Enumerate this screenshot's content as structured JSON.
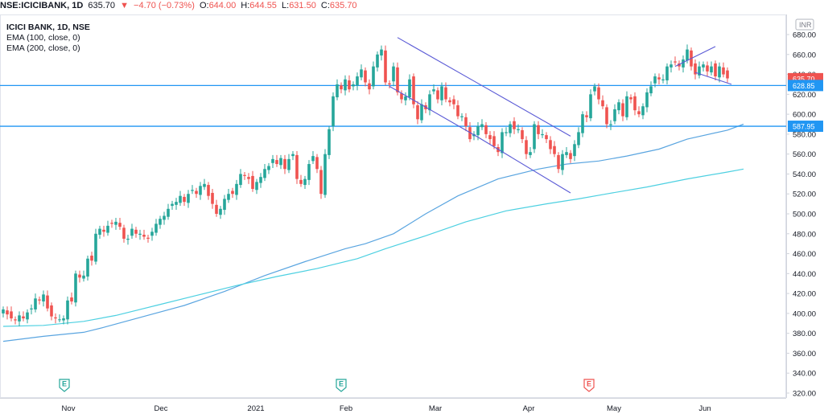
{
  "header": {
    "symbol": "NSE:ICICIBANK, 1D",
    "last": "635.70",
    "change": "−4.70 (−0.73%)",
    "open_label": "O:",
    "open": "644.00",
    "high_label": "H:",
    "high": "644.55",
    "low_label": "L:",
    "low": "631.50",
    "close_label": "C:",
    "close": "635.70"
  },
  "legend": {
    "title": "ICICI BANK, 1D, NSE",
    "ema100": "EMA (100, close, 0)",
    "ema200": "EMA (200, close, 0)"
  },
  "currency": "INR",
  "colors": {
    "up": "#26a69a",
    "down": "#ef5350",
    "ema100": "#5aa5e0",
    "ema200": "#4dd0e1",
    "hline": "#2196f3",
    "channel": "#5b5bd6",
    "earnings_past": "#26a69a",
    "earnings_next": "#ef5350"
  },
  "earnings_markers": [
    {
      "icon": "earnings-icon",
      "text": "E",
      "date": "Nov 1",
      "status": "reported"
    },
    {
      "icon": "earnings-icon",
      "text": "E",
      "date": "Feb 1",
      "status": "reported"
    },
    {
      "icon": "earnings-icon",
      "text": "E",
      "date": "Apr 24",
      "status": "upcoming"
    }
  ],
  "chart_data": {
    "type": "candlestick",
    "ylim": [
      320,
      690
    ],
    "y_ticks": [
      320,
      340,
      360,
      380,
      400,
      420,
      440,
      460,
      480,
      500,
      520,
      540,
      560,
      580,
      600,
      620,
      640,
      660,
      680
    ],
    "x_ticks": [
      "Nov",
      "Dec",
      "2021",
      "Feb",
      "Mar",
      "Apr",
      "May",
      "Jun"
    ],
    "price_labels": [
      {
        "name": "last",
        "value": 635.7,
        "text": "635.70",
        "color": "#ef5350"
      },
      {
        "name": "resistance",
        "value": 628.85,
        "text": "628.85",
        "color": "#2196f3"
      },
      {
        "name": "support",
        "value": 587.95,
        "text": "587.95",
        "color": "#2196f3"
      }
    ],
    "horizontal_lines": [
      628.85,
      587.95
    ],
    "closes": [
      404,
      399,
      395,
      393,
      398,
      395,
      401,
      405,
      415,
      413,
      419,
      405,
      397,
      395,
      394,
      395,
      413,
      412,
      440,
      436,
      438,
      455,
      453,
      480,
      485,
      482,
      488,
      490,
      492,
      487,
      475,
      475,
      485,
      480,
      480,
      477,
      475,
      482,
      490,
      495,
      498,
      505,
      510,
      512,
      518,
      512,
      520,
      524,
      520,
      528,
      530,
      518,
      510,
      500,
      505,
      515,
      520,
      520,
      530,
      540,
      538,
      535,
      525,
      532,
      537,
      545,
      548,
      555,
      550,
      556,
      545,
      555,
      560,
      535,
      530,
      535,
      550,
      558,
      545,
      520,
      560,
      585,
      618,
      630,
      625,
      635,
      625,
      630,
      638,
      645,
      632,
      625,
      648,
      660,
      665,
      632,
      630,
      648,
      622,
      615,
      618,
      635,
      610,
      595,
      610,
      605,
      620,
      625,
      615,
      628,
      615,
      612,
      610,
      598,
      598,
      588,
      575,
      580,
      588,
      590,
      580,
      575,
      568,
      562,
      582,
      582,
      590,
      585,
      585,
      575,
      560,
      562,
      590,
      580,
      580,
      575,
      565,
      560,
      545,
      560,
      562,
      555,
      570,
      582,
      600,
      597,
      620,
      628,
      615,
      608,
      590,
      590,
      605,
      612,
      598,
      618,
      615,
      604,
      600,
      608,
      622,
      628,
      638,
      635,
      635,
      648,
      650,
      652,
      648,
      655,
      665,
      648,
      640,
      648,
      650,
      643,
      648,
      638,
      648,
      640,
      636
    ],
    "ema100": [
      [
        0,
        372
      ],
      [
        10,
        377
      ],
      [
        20,
        381
      ],
      [
        25,
        386
      ],
      [
        35,
        397
      ],
      [
        45,
        408
      ],
      [
        55,
        422
      ],
      [
        65,
        438
      ],
      [
        75,
        452
      ],
      [
        85,
        465
      ],
      [
        90,
        470
      ],
      [
        97,
        480
      ],
      [
        105,
        500
      ],
      [
        113,
        518
      ],
      [
        123,
        535
      ],
      [
        133,
        545
      ],
      [
        140,
        550
      ],
      [
        148,
        553
      ],
      [
        155,
        558
      ],
      [
        163,
        565
      ],
      [
        170,
        575
      ],
      [
        180,
        584
      ],
      [
        184,
        590
      ]
    ],
    "ema200": [
      [
        0,
        387
      ],
      [
        10,
        388
      ],
      [
        20,
        392
      ],
      [
        28,
        398
      ],
      [
        38,
        408
      ],
      [
        48,
        418
      ],
      [
        58,
        428
      ],
      [
        68,
        437
      ],
      [
        78,
        445
      ],
      [
        88,
        455
      ],
      [
        95,
        465
      ],
      [
        105,
        478
      ],
      [
        115,
        492
      ],
      [
        125,
        503
      ],
      [
        135,
        510
      ],
      [
        143,
        515
      ],
      [
        150,
        520
      ],
      [
        160,
        527
      ],
      [
        170,
        535
      ],
      [
        180,
        542
      ],
      [
        184,
        545
      ]
    ],
    "channel_lines": [
      [
        [
          98,
          677
        ],
        [
          118,
          631
        ],
        [
          141,
          578
        ]
      ],
      [
        [
          96,
          628
        ],
        [
          118,
          577
        ],
        [
          141,
          521
        ]
      ]
    ],
    "wedge_lines": [
      [
        [
          167,
          648
        ],
        [
          177,
          668
        ]
      ],
      [
        [
          172,
          642
        ],
        [
          181,
          630
        ]
      ]
    ]
  }
}
